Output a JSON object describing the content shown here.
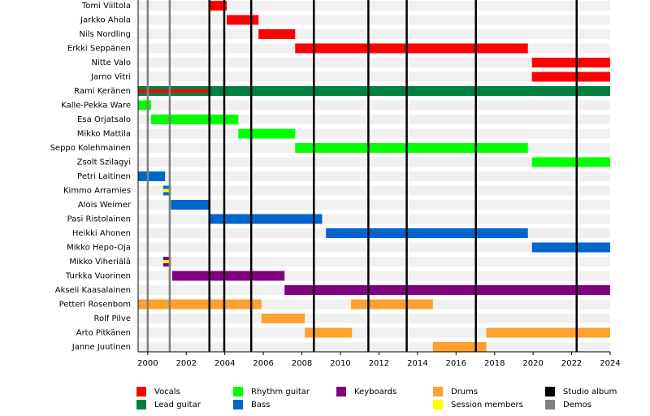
{
  "chart_data": {
    "type": "timeline",
    "xlim": [
      1999.5,
      2024
    ],
    "xticks": [
      2000,
      2002,
      2004,
      2006,
      2008,
      2010,
      2012,
      2014,
      2016,
      2018,
      2020,
      2022,
      2024
    ],
    "roles": [
      {
        "name": "Vocals",
        "color": "#ff0000"
      },
      {
        "name": "Lead guitar",
        "color": "#008040"
      },
      {
        "name": "Rhythm guitar",
        "color": "#00ff00"
      },
      {
        "name": "Bass",
        "color": "#0066cc"
      },
      {
        "name": "Keyboards",
        "color": "#800080"
      },
      {
        "name": "Drums",
        "color": "#ffa030"
      },
      {
        "name": "Session members",
        "color": "#ffff00"
      },
      {
        "name": "Studio album",
        "color": "#000000"
      },
      {
        "name": "Demos",
        "color": "#808080"
      }
    ],
    "studio_albums": [
      2003.2,
      2003.97,
      2005.37,
      2008.62,
      2011.45,
      2013.44,
      2017.03,
      2022.26
    ],
    "demos": [
      2000.0,
      2001.14
    ],
    "members": [
      {
        "name": "Tomi Viiltola",
        "periods": [
          {
            "role": 0,
            "start": 2003.25,
            "end": 2004.1
          }
        ]
      },
      {
        "name": "Jarkko Ahola",
        "periods": [
          {
            "role": 0,
            "start": 2004.1,
            "end": 2005.75
          }
        ]
      },
      {
        "name": "Nils Nordling",
        "periods": [
          {
            "role": 0,
            "start": 2005.75,
            "end": 2007.65
          }
        ]
      },
      {
        "name": "Erkki Seppänen",
        "periods": [
          {
            "role": 0,
            "start": 2007.65,
            "end": 2019.73
          }
        ]
      },
      {
        "name": "Nitte Valo",
        "periods": [
          {
            "role": 0,
            "start": 2019.94,
            "end": 2024
          }
        ]
      },
      {
        "name": "Jarno Vitri",
        "periods": [
          {
            "role": 0,
            "start": 2019.94,
            "end": 2024
          }
        ]
      },
      {
        "name": "Rami Keränen",
        "periods": [
          {
            "role": 1,
            "start": 1999.5,
            "end": 2024
          },
          {
            "role": 0,
            "start": 1999.5,
            "end": 2003.25
          }
        ]
      },
      {
        "name": "Kalle-Pekka Ware",
        "periods": [
          {
            "role": 2,
            "start": 1999.5,
            "end": 2000.17
          }
        ]
      },
      {
        "name": "Esa Orjatsalo",
        "periods": [
          {
            "role": 2,
            "start": 2000.17,
            "end": 2004.7
          }
        ]
      },
      {
        "name": "Mikko Mattila",
        "periods": [
          {
            "role": 2,
            "start": 2004.7,
            "end": 2007.65
          }
        ]
      },
      {
        "name": "Seppo Kolehmainen",
        "periods": [
          {
            "role": 2,
            "start": 2007.65,
            "end": 2019.73
          }
        ]
      },
      {
        "name": "Zsolt Szilagyi",
        "periods": [
          {
            "role": 2,
            "start": 2019.94,
            "end": 2024
          }
        ]
      },
      {
        "name": "Petri Laitinen",
        "periods": [
          {
            "role": 3,
            "start": 1999.5,
            "end": 2000.9
          }
        ]
      },
      {
        "name": "Kimmo Arramies",
        "periods": [
          {
            "role": 3,
            "start": 2000.8,
            "end": 2001.2
          },
          {
            "role": 6,
            "start": 2000.8,
            "end": 2001.2
          }
        ]
      },
      {
        "name": "Alois Weimer",
        "periods": [
          {
            "role": 3,
            "start": 2001.2,
            "end": 2003.25
          }
        ]
      },
      {
        "name": "Pasi Ristolainen",
        "periods": [
          {
            "role": 3,
            "start": 2003.25,
            "end": 2009.05
          }
        ]
      },
      {
        "name": "Heikki Ahonen",
        "periods": [
          {
            "role": 3,
            "start": 2009.25,
            "end": 2019.73
          }
        ]
      },
      {
        "name": "Mikko Hepo-Oja",
        "periods": [
          {
            "role": 3,
            "start": 2019.94,
            "end": 2024
          }
        ]
      },
      {
        "name": "Mikko Viheriälä",
        "periods": [
          {
            "role": 4,
            "start": 2000.8,
            "end": 2001.2
          },
          {
            "role": 6,
            "start": 2000.8,
            "end": 2001.2
          }
        ]
      },
      {
        "name": "Turkka Vuorinen",
        "periods": [
          {
            "role": 4,
            "start": 2001.27,
            "end": 2007.1
          }
        ]
      },
      {
        "name": "Akseli Kaasalainen",
        "periods": [
          {
            "role": 4,
            "start": 2007.1,
            "end": 2024
          }
        ]
      },
      {
        "name": "Petteri Rosenbom",
        "periods": [
          {
            "role": 5,
            "start": 1999.5,
            "end": 2005.9
          },
          {
            "role": 5,
            "start": 2010.55,
            "end": 2014.8
          }
        ]
      },
      {
        "name": "Rolf Pilve",
        "periods": [
          {
            "role": 5,
            "start": 2005.9,
            "end": 2008.15
          }
        ]
      },
      {
        "name": "Arto Pitkänen",
        "periods": [
          {
            "role": 5,
            "start": 2008.15,
            "end": 2010.6
          },
          {
            "role": 5,
            "start": 2017.57,
            "end": 2024
          }
        ]
      },
      {
        "name": "Janne Juutinen",
        "periods": [
          {
            "role": 5,
            "start": 2014.8,
            "end": 2017.57
          }
        ]
      }
    ]
  }
}
